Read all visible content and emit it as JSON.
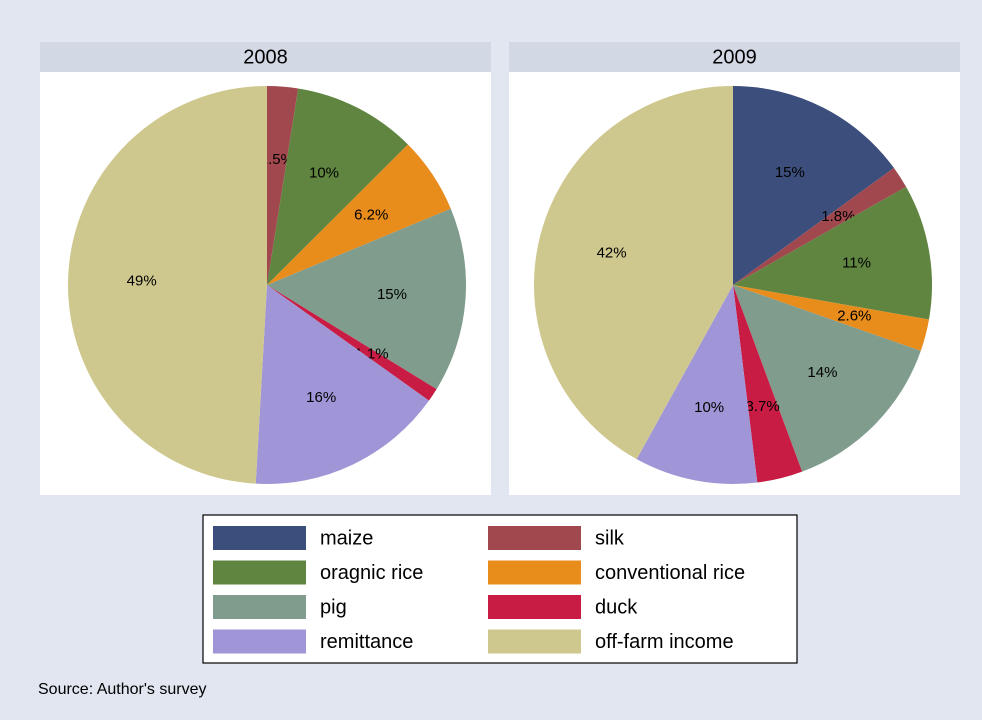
{
  "chart_data": [
    {
      "type": "pie",
      "title": "2008",
      "categories": [
        "silk",
        "oragnic rice",
        "conventional rice",
        "pig",
        "duck",
        "remittance",
        "off-farm income"
      ],
      "values": [
        2.5,
        10,
        6.2,
        15,
        1.1,
        16,
        49
      ],
      "value_labels": [
        "2.5%",
        "10%",
        "6.2%",
        "15%",
        "1.1%",
        "16%",
        "49%"
      ],
      "colors": [
        "#a0484d",
        "#5f8540",
        "#e88c1c",
        "#7f9c8d",
        "#c81c44",
        "#a095d6",
        "#cfc88e"
      ]
    },
    {
      "type": "pie",
      "title": "2009",
      "categories": [
        "maize",
        "silk",
        "oragnic rice",
        "conventional rice",
        "pig",
        "duck",
        "remittance",
        "off-farm income"
      ],
      "values": [
        15,
        1.8,
        11,
        2.6,
        14,
        3.7,
        10,
        42
      ],
      "value_labels": [
        "15%",
        "1.8%",
        "11%",
        "2.6%",
        "14%",
        "3.7%",
        "10%",
        "42%"
      ],
      "colors": [
        "#3c4f7c",
        "#a0484d",
        "#5f8540",
        "#e88c1c",
        "#7f9c8d",
        "#c81c44",
        "#a095d6",
        "#cfc88e"
      ]
    }
  ],
  "note": "Source: Author's survey"
}
